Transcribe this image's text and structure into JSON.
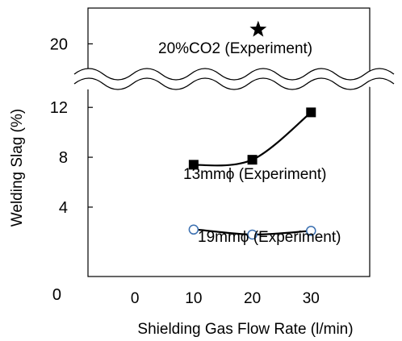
{
  "chart_data": {
    "type": "line",
    "xlabel": "Shielding Gas Flow Rate (l/min)",
    "ylabel": "Welding Slag (%)",
    "x_ticks": [
      "0",
      "10",
      "20",
      "30"
    ],
    "y_ticks_lower": [
      "0",
      "4",
      "8",
      "12"
    ],
    "y_ticks_upper": [
      "20"
    ],
    "xlim": [
      -8,
      40
    ],
    "ylim_lower": [
      -1.5,
      13.5
    ],
    "ylim_upper": [
      19,
      21.5
    ],
    "axis_break": true,
    "grid": false,
    "series": [
      {
        "name": "20%CO2 (Experiment)",
        "marker": "star",
        "points": [
          {
            "x": 21,
            "y": 20.6
          }
        ]
      },
      {
        "name": "13mmϕ (Experiment)",
        "marker": "filled-square",
        "points": [
          {
            "x": 10,
            "y": 7.4
          },
          {
            "x": 20,
            "y": 7.8
          },
          {
            "x": 30,
            "y": 11.6
          }
        ]
      },
      {
        "name": "19mmϕ (Experiment)",
        "marker": "open-circle",
        "points": [
          {
            "x": 10,
            "y": 2.2
          },
          {
            "x": 20,
            "y": 1.8
          },
          {
            "x": 30,
            "y": 2.1
          }
        ]
      }
    ]
  }
}
